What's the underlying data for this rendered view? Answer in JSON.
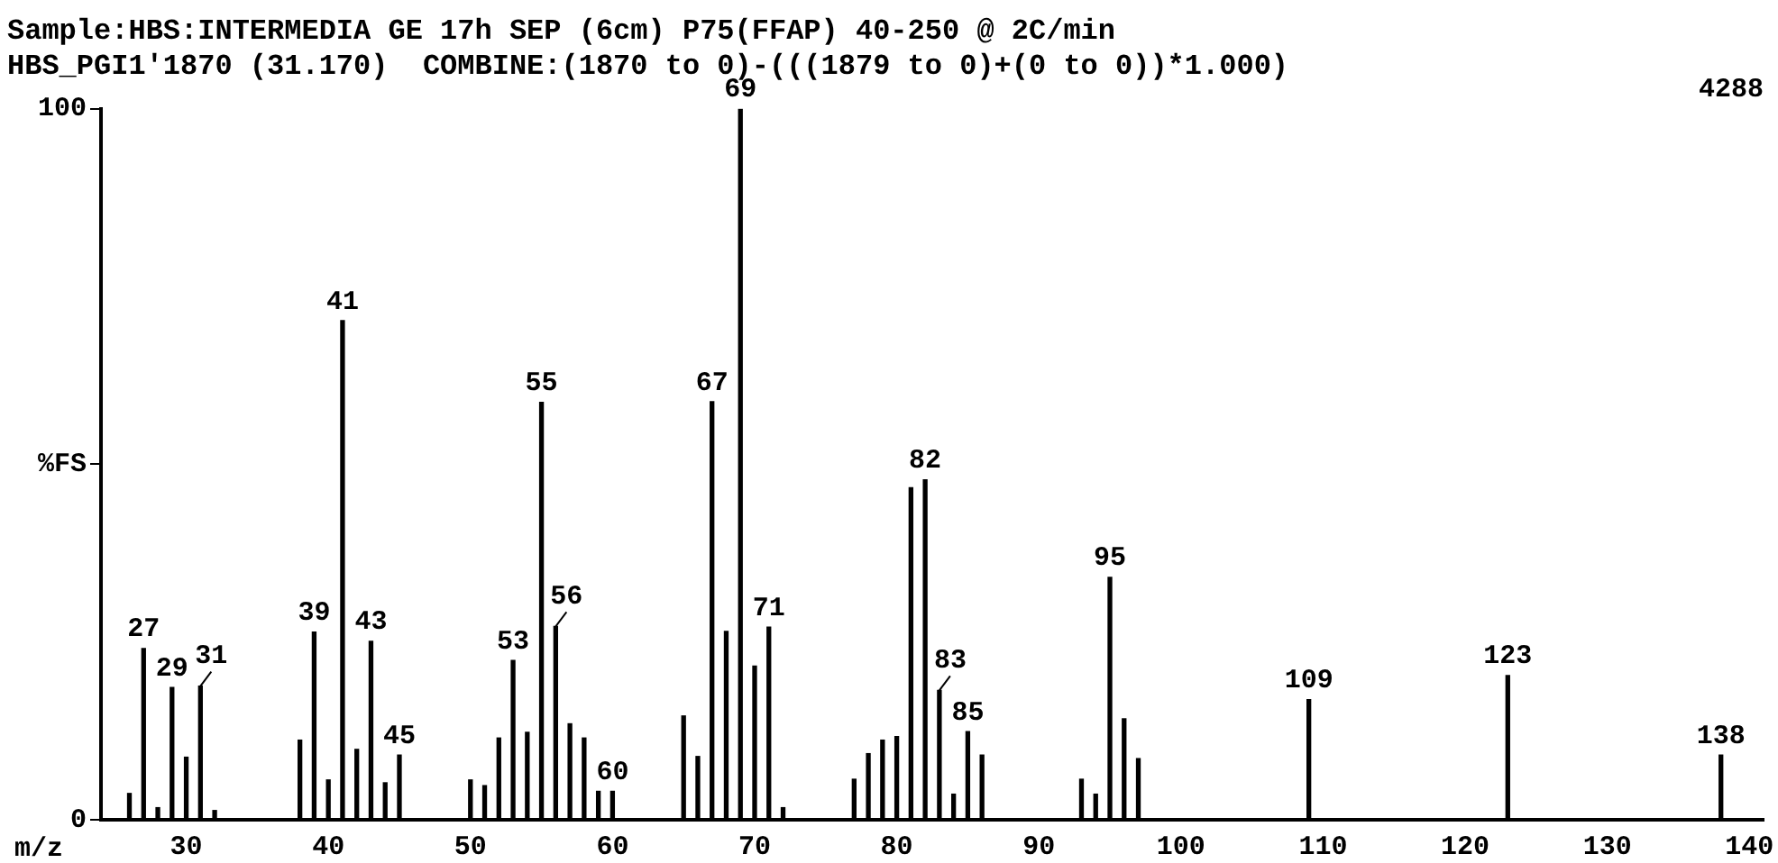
{
  "chart_data": {
    "type": "bar",
    "title": "Sample:HBS:INTERMEDIA GE 17h SEP (6cm) P75(FFAP) 40-250 @ 2C/min",
    "subtitle": "HBS_PGI1'1870 (31.170)  COMBINE:(1870 to 0)-(((1879 to 0)+(0 to 0))*1.000)",
    "xlabel": "m/z",
    "annotations": [
      "4288",
      {
        "text": "27",
        "x": 27,
        "y": 24.1
      },
      {
        "text": "29",
        "x": 29,
        "y": 18.6
      },
      {
        "text": "31",
        "x": 31,
        "y": 18.8
      },
      {
        "text": "39",
        "x": 39,
        "y": 26.4
      },
      {
        "text": "41",
        "x": 41,
        "y": 70.2
      },
      {
        "text": "43",
        "x": 43,
        "y": 25.1
      },
      {
        "text": "45",
        "x": 45,
        "y": 9.1
      },
      {
        "text": "53",
        "x": 53,
        "y": 22.4
      },
      {
        "text": "55",
        "x": 55,
        "y": 58.7
      },
      {
        "text": "56",
        "x": 56,
        "y": 27.2
      },
      {
        "text": "60",
        "x": 60,
        "y": 4.0
      },
      {
        "text": "67",
        "x": 67,
        "y": 58.8
      },
      {
        "text": "69",
        "x": 69,
        "y": 100
      },
      {
        "text": "71",
        "x": 71,
        "y": 27.1
      },
      {
        "text": "82",
        "x": 82,
        "y": 47.8
      },
      {
        "text": "83",
        "x": 83,
        "y": 18.2
      },
      {
        "text": "85",
        "x": 85,
        "y": 12.4
      },
      {
        "text": "95",
        "x": 95,
        "y": 34.1
      },
      {
        "text": "109",
        "x": 109,
        "y": 16.9
      },
      {
        "text": "123",
        "x": 123,
        "y": 20.3
      },
      {
        "text": "138",
        "x": 138,
        "y": 9.1
      }
    ],
    "x": [
      26,
      27,
      28,
      29,
      30,
      31,
      32,
      38,
      39,
      40,
      41,
      42,
      43,
      44,
      45,
      50,
      51,
      52,
      53,
      54,
      55,
      56,
      57,
      58,
      59,
      60,
      65,
      66,
      67,
      68,
      69,
      70,
      71,
      72,
      77,
      78,
      79,
      80,
      81,
      82,
      83,
      84,
      85,
      86,
      93,
      94,
      95,
      96,
      97,
      109,
      123,
      138
    ],
    "values": [
      3.7,
      24.1,
      1.7,
      18.6,
      8.8,
      18.8,
      1.3,
      11.2,
      26.4,
      5.6,
      70.2,
      9.9,
      25.1,
      5.2,
      9.1,
      5.6,
      4.8,
      11.5,
      22.4,
      12.3,
      58.7,
      27.2,
      13.5,
      11.5,
      4.0,
      4.0,
      14.6,
      8.9,
      58.8,
      26.5,
      100,
      21.6,
      27.1,
      1.7,
      5.7,
      9.3,
      11.2,
      11.7,
      46.7,
      47.8,
      18.2,
      3.6,
      12.4,
      9.1,
      5.7,
      3.6,
      34.1,
      14.2,
      8.6,
      16.9,
      20.3,
      9.1
    ],
    "color": "#000000",
    "xlim": [
      24,
      141
    ],
    "xticks": [
      30,
      40,
      50,
      60,
      70,
      80,
      90,
      100,
      110,
      120,
      130,
      140
    ],
    "ylim": [
      0,
      100
    ],
    "yticks": [
      0,
      {
        "value": 50,
        "label": "%FS"
      },
      100
    ],
    "grid": false,
    "legend": false
  }
}
